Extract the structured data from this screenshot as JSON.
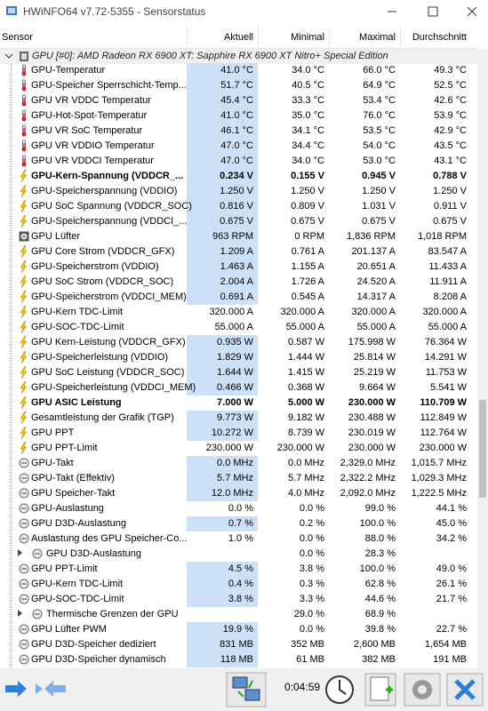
{
  "window": {
    "title": "HWiNFO64 v7.72-5355 - Sensorstatus"
  },
  "columns": [
    "Sensor",
    "Aktuell",
    "Minimal",
    "Maximal",
    "Durchschnitt"
  ],
  "group": {
    "title": "GPU [#0]: AMD Radeon RX 6900 XT: Sapphire RX 6900 XT Nitro+ Special Edition"
  },
  "rows": [
    {
      "name": "GPU-Temperatur",
      "current": "41.0 °C",
      "min": "34.0 °C",
      "max": "66.0 °C",
      "avg": "49.3 °C",
      "highlight": true
    },
    {
      "name": "GPU-Speicher Sperrschicht-Temp...",
      "current": "51.7 °C",
      "min": "40.5 °C",
      "max": "64.9 °C",
      "avg": "52.5 °C",
      "highlight": true
    },
    {
      "name": "GPU VR VDDC Temperatur",
      "current": "45.4 °C",
      "min": "33.3 °C",
      "max": "53.4 °C",
      "avg": "42.6 °C",
      "highlight": true
    },
    {
      "name": "GPU-Hot-Spot-Temperatur",
      "current": "41.0 °C",
      "min": "35.0 °C",
      "max": "76.0 °C",
      "avg": "53.9 °C",
      "highlight": true
    },
    {
      "name": "GPU VR SoC Temperatur",
      "current": "46.1 °C",
      "min": "34.1 °C",
      "max": "53.5 °C",
      "avg": "42.9 °C",
      "highlight": true
    },
    {
      "name": "GPU VR VDDIO Temperatur",
      "current": "47.0 °C",
      "min": "34.4 °C",
      "max": "54.0 °C",
      "avg": "43.5 °C",
      "highlight": true
    },
    {
      "name": "GPU VR VDDCI Temperatur",
      "current": "47.0 °C",
      "min": "34.0 °C",
      "max": "53.0 °C",
      "avg": "43.1 °C",
      "highlight": true
    },
    {
      "name": "GPU-Kern-Spannung (VDDCR_...",
      "current": "0.234 V",
      "min": "0.155 V",
      "max": "0.945 V",
      "avg": "0.788 V",
      "highlight": true,
      "bold": true
    },
    {
      "name": "GPU-Speicherspannung (VDDIO)",
      "current": "1.250 V",
      "min": "1.250 V",
      "max": "1.250 V",
      "avg": "1.250 V",
      "highlight": true
    },
    {
      "name": "GPU SoC Spannung (VDDCR_SOC)",
      "current": "0.816 V",
      "min": "0.809 V",
      "max": "1.031 V",
      "avg": "0.911 V",
      "highlight": true
    },
    {
      "name": "GPU-Speicherspannung (VDDCI_...",
      "current": "0.675 V",
      "min": "0.675 V",
      "max": "0.675 V",
      "avg": "0.675 V",
      "highlight": true
    },
    {
      "name": "GPU Lüfter",
      "current": "963 RPM",
      "min": "0 RPM",
      "max": "1,836 RPM",
      "avg": "1,018 RPM",
      "highlight": true
    },
    {
      "name": "GPU Core Strom (VDDCR_GFX)",
      "current": "1.209 A",
      "min": "0.761 A",
      "max": "201.137 A",
      "avg": "83.547 A",
      "highlight": true
    },
    {
      "name": "GPU-Speicherstrom (VDDIO)",
      "current": "1.463 A",
      "min": "1.155 A",
      "max": "20.651 A",
      "avg": "11.433 A",
      "highlight": true
    },
    {
      "name": "GPU SoC Strom (VDDCR_SOC)",
      "current": "2.004 A",
      "min": "1.726 A",
      "max": "24.520 A",
      "avg": "11.911 A",
      "highlight": true
    },
    {
      "name": "GPU-Speicherstrom (VDDCI_MEM)",
      "current": "0.691 A",
      "min": "0.545 A",
      "max": "14.317 A",
      "avg": "8.208 A",
      "highlight": true
    },
    {
      "name": "GPU-Kern TDC-Limit",
      "current": "320.000 A",
      "min": "320.000 A",
      "max": "320.000 A",
      "avg": "320.000 A"
    },
    {
      "name": "GPU-SOC-TDC-Limit",
      "current": "55.000 A",
      "min": "55.000 A",
      "max": "55.000 A",
      "avg": "55.000 A"
    },
    {
      "name": "GPU Kern-Leistung (VDDCR_GFX)",
      "current": "0.935 W",
      "min": "0.587 W",
      "max": "175.998 W",
      "avg": "76.364 W",
      "highlight": true
    },
    {
      "name": "GPU-Speicherleistung (VDDIO)",
      "current": "1.829 W",
      "min": "1.444 W",
      "max": "25.814 W",
      "avg": "14.291 W",
      "highlight": true
    },
    {
      "name": "GPU SoC Leistung (VDDCR_SOC)",
      "current": "1.644 W",
      "min": "1.415 W",
      "max": "25.219 W",
      "avg": "11.753 W",
      "highlight": true
    },
    {
      "name": "GPU-Speicherleistung (VDDCI_MEM)",
      "current": "0.466 W",
      "min": "0.368 W",
      "max": "9.664 W",
      "avg": "5.541 W",
      "highlight": true
    },
    {
      "name": "GPU ASIC Leistung",
      "current": "7.000 W",
      "min": "5.000 W",
      "max": "230.000 W",
      "avg": "110.709 W",
      "bold": true
    },
    {
      "name": "Gesamtleistung der Grafik (TGP)",
      "current": "9.773 W",
      "min": "9.182 W",
      "max": "230.488 W",
      "avg": "112.849 W",
      "highlight": true
    },
    {
      "name": "GPU PPT",
      "current": "10.272 W",
      "min": "8.739 W",
      "max": "230.019 W",
      "avg": "112.764 W",
      "highlight": true
    },
    {
      "name": "GPU PPT-Limit",
      "current": "230.000 W",
      "min": "230.000 W",
      "max": "230.000 W",
      "avg": "230.000 W"
    },
    {
      "name": "GPU-Takt",
      "current": "0.0 MHz",
      "min": "0.0 MHz",
      "max": "2,329.0 MHz",
      "avg": "1,015.7 MHz",
      "highlight": true
    },
    {
      "name": "GPU-Takt (Effektiv)",
      "current": "5.7 MHz",
      "min": "5.7 MHz",
      "max": "2,322.2 MHz",
      "avg": "1,029.3 MHz",
      "highlight": true
    },
    {
      "name": "GPU Speicher-Takt",
      "current": "12.0 MHz",
      "min": "4.0 MHz",
      "max": "2,092.0 MHz",
      "avg": "1,222.5 MHz",
      "highlight": true
    },
    {
      "name": "GPU-Auslastung",
      "current": "0.0 %",
      "min": "0.0 %",
      "max": "99.0 %",
      "avg": "44.1 %"
    },
    {
      "name": "GPU D3D-Auslastung",
      "current": "0.7 %",
      "min": "0.2 %",
      "max": "100.0 %",
      "avg": "45.0 %",
      "highlight": true
    },
    {
      "name": "Auslastung des GPU Speicher-Co...",
      "current": "1.0 %",
      "min": "0.0 %",
      "max": "88.0 %",
      "avg": "34.2 %"
    },
    {
      "name": "GPU D3D-Auslastung",
      "min": "0.0 %",
      "max": "28.3 %",
      "collapsed": true
    },
    {
      "name": "GPU PPT-Limit",
      "current": "4.5 %",
      "min": "3.8 %",
      "max": "100.0 %",
      "avg": "49.0 %",
      "highlight": true
    },
    {
      "name": "GPU-Kern TDC-Limit",
      "current": "0.4 %",
      "min": "0.3 %",
      "max": "62.8 %",
      "avg": "26.1 %",
      "highlight": true
    },
    {
      "name": "GPU-SOC-TDC-Limit",
      "current": "3.8 %",
      "min": "3.3 %",
      "max": "44.6 %",
      "avg": "21.7 %",
      "highlight": true
    },
    {
      "name": "Thermische Grenzen der GPU",
      "min": "29.0 %",
      "max": "68.9 %",
      "collapsed": true
    },
    {
      "name": "GPU Lüfter PWM",
      "current": "19.9 %",
      "min": "0.0 %",
      "max": "39.8 %",
      "avg": "22.7 %",
      "highlight": true
    },
    {
      "name": "GPU D3D-Speicher dediziert",
      "current": "831 MB",
      "min": "352 MB",
      "max": "2,600 MB",
      "avg": "1,654 MB",
      "highlight": true
    },
    {
      "name": "GPU D3D-Speicher dynamisch",
      "current": "118 MB",
      "min": "61 MB",
      "max": "382 MB",
      "avg": "191 MB",
      "highlight": true
    }
  ],
  "footer": {
    "elapsed": "0:04:59"
  }
}
